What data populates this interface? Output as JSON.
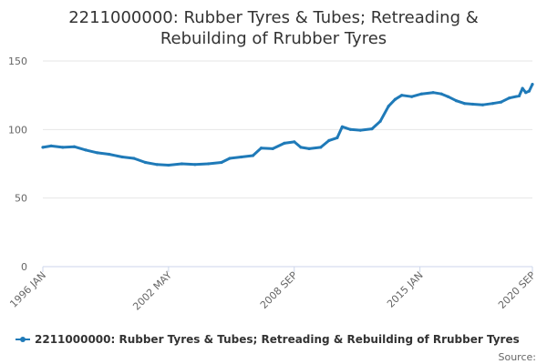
{
  "chart_data": {
    "type": "line",
    "title_lines": [
      "2211000000: Rubber Tyres & Tubes; Retreading &",
      "Rebuilding of Rrubber Tyres"
    ],
    "xlabel": "",
    "ylabel": "",
    "x_start": "1996-01",
    "x_end": "2020-09",
    "x_ticks": [
      {
        "date": "1996-01",
        "label": "1996 JAN"
      },
      {
        "date": "2002-05",
        "label": "2002 MAY"
      },
      {
        "date": "2008-09",
        "label": "2008 SEP"
      },
      {
        "date": "2015-01",
        "label": "2015 JAN"
      },
      {
        "date": "2020-09",
        "label": "2020 SEP"
      }
    ],
    "ylim": [
      0,
      150
    ],
    "y_ticks": [
      0,
      50,
      100,
      150
    ],
    "grid": true,
    "legend_position": "bottom",
    "source_label": "Source:",
    "series": [
      {
        "name": "2211000000: Rubber Tyres & Tubes; Retreading & Rebuilding of Rrubber Tyres",
        "color": "#1f7ab8",
        "points": [
          [
            "1996-01",
            87
          ],
          [
            "1996-06",
            88
          ],
          [
            "1997-01",
            87
          ],
          [
            "1997-08",
            87.5
          ],
          [
            "1998-03",
            85
          ],
          [
            "1998-10",
            83
          ],
          [
            "1999-05",
            82
          ],
          [
            "2000-01",
            80
          ],
          [
            "2000-08",
            79
          ],
          [
            "2001-03",
            76
          ],
          [
            "2001-10",
            74.5
          ],
          [
            "2002-05",
            74
          ],
          [
            "2003-01",
            75
          ],
          [
            "2003-09",
            74.5
          ],
          [
            "2004-05",
            75
          ],
          [
            "2005-01",
            76
          ],
          [
            "2005-06",
            79
          ],
          [
            "2006-01",
            80
          ],
          [
            "2006-08",
            81
          ],
          [
            "2007-01",
            86.5
          ],
          [
            "2007-08",
            86
          ],
          [
            "2008-03",
            90
          ],
          [
            "2008-09",
            91
          ],
          [
            "2009-01",
            87
          ],
          [
            "2009-06",
            86
          ],
          [
            "2010-01",
            87
          ],
          [
            "2010-06",
            92
          ],
          [
            "2010-11",
            94
          ],
          [
            "2011-02",
            102
          ],
          [
            "2011-07",
            100
          ],
          [
            "2012-01",
            99.5
          ],
          [
            "2012-08",
            100.5
          ],
          [
            "2013-01",
            106
          ],
          [
            "2013-06",
            117
          ],
          [
            "2013-10",
            122
          ],
          [
            "2014-02",
            125
          ],
          [
            "2014-08",
            124
          ],
          [
            "2015-02",
            126
          ],
          [
            "2015-09",
            127
          ],
          [
            "2016-02",
            126
          ],
          [
            "2016-06",
            124
          ],
          [
            "2016-11",
            121
          ],
          [
            "2017-04",
            119
          ],
          [
            "2017-09",
            118.5
          ],
          [
            "2018-03",
            118
          ],
          [
            "2018-09",
            119
          ],
          [
            "2019-02",
            120
          ],
          [
            "2019-07",
            123
          ],
          [
            "2020-01",
            124.5
          ],
          [
            "2020-03",
            130
          ],
          [
            "2020-05",
            127
          ],
          [
            "2020-07",
            128
          ],
          [
            "2020-09",
            133
          ]
        ]
      }
    ]
  }
}
